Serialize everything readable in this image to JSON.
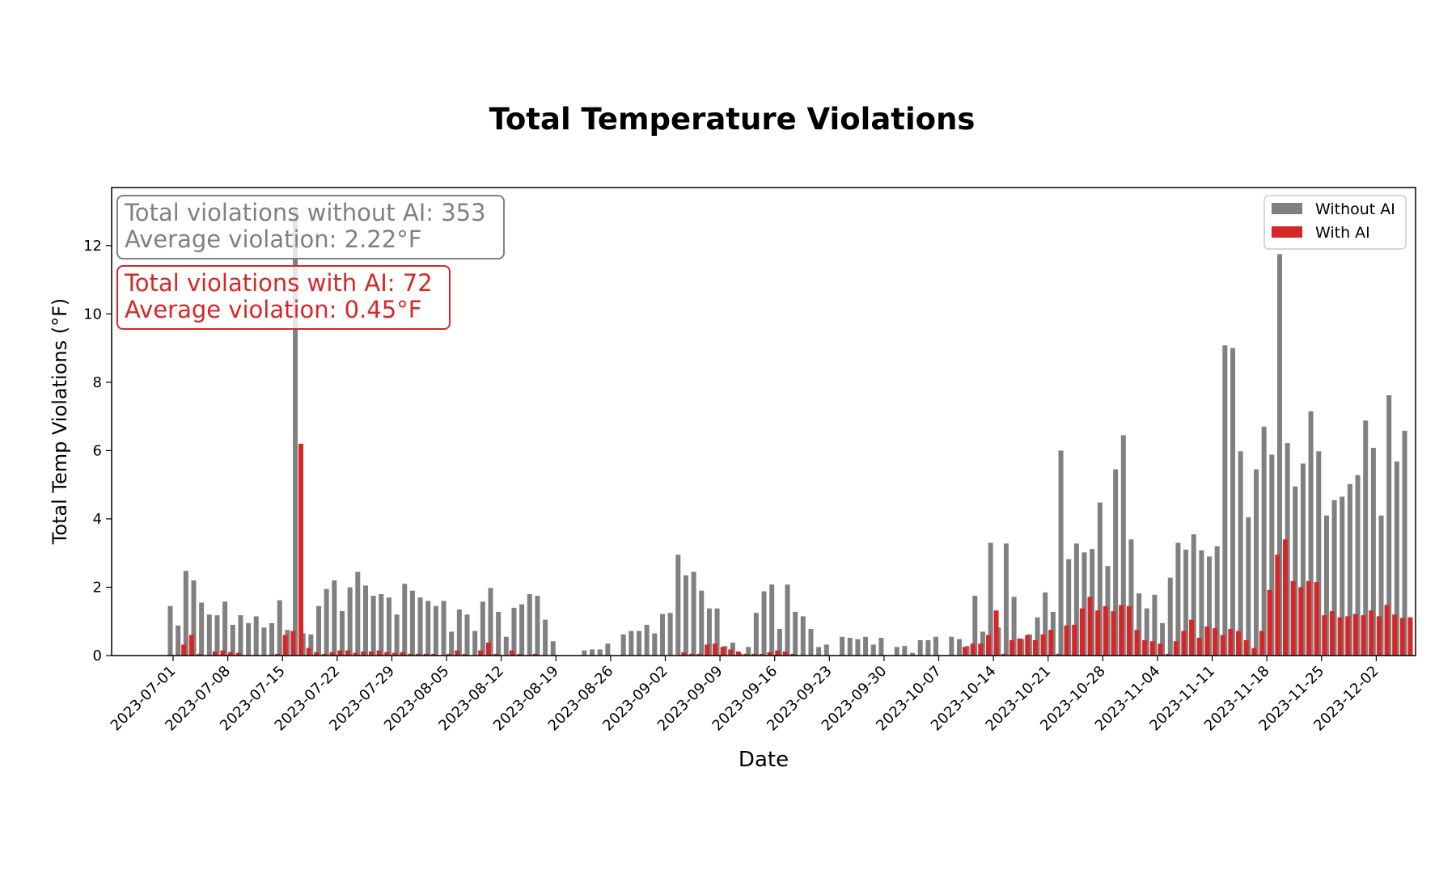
{
  "chart_data": {
    "type": "bar",
    "title": "Total Temperature Violations",
    "xlabel": "Date",
    "ylabel": "Total Temp Violations (°F)",
    "ylim": [
      0,
      13.7
    ],
    "yticks": [
      0,
      2,
      4,
      6,
      8,
      10,
      12
    ],
    "x_start": "2023-07-01",
    "x_ticks": [
      "2023-07-01",
      "2023-07-08",
      "2023-07-15",
      "2023-07-22",
      "2023-07-29",
      "2023-08-05",
      "2023-08-12",
      "2023-08-19",
      "2023-08-26",
      "2023-09-02",
      "2023-09-09",
      "2023-09-16",
      "2023-09-23",
      "2023-09-30",
      "2023-10-07",
      "2023-10-14",
      "2023-10-21",
      "2023-10-28",
      "2023-11-04",
      "2023-11-11",
      "2023-11-18",
      "2023-11-25",
      "2023-12-02"
    ],
    "grid": false,
    "legend_position": "top-right",
    "series": [
      {
        "name": "Without AI",
        "color": "#808080",
        "values": [
          1.45,
          0.88,
          2.48,
          2.2,
          1.55,
          1.2,
          1.18,
          1.58,
          0.9,
          1.18,
          0.95,
          1.15,
          0.82,
          0.95,
          1.62,
          0.75,
          13.1,
          0.65,
          0.62,
          1.45,
          1.95,
          2.2,
          1.3,
          2.0,
          2.45,
          2.05,
          1.75,
          1.8,
          1.7,
          1.2,
          2.1,
          1.9,
          1.7,
          1.6,
          1.45,
          1.6,
          0.7,
          1.35,
          1.2,
          0.72,
          1.58,
          1.98,
          1.28,
          0.55,
          1.4,
          1.5,
          1.8,
          1.75,
          1.05,
          0.42,
          0,
          0,
          0,
          0.15,
          0.18,
          0.18,
          0.35,
          0,
          0.62,
          0.72,
          0.72,
          0.9,
          0.65,
          1.22,
          1.25,
          2.95,
          2.35,
          2.45,
          1.9,
          1.38,
          1.38,
          0.28,
          0.38,
          0.05,
          0.25,
          1.25,
          1.88,
          2.08,
          0.78,
          2.08,
          1.28,
          1.15,
          0.78,
          0.25,
          0.32,
          0,
          0.55,
          0.52,
          0.48,
          0.55,
          0.32,
          0.52,
          0,
          0.25,
          0.28,
          0.08,
          0.45,
          0.45,
          0.55,
          0,
          0.55,
          0.48,
          0.28,
          1.75,
          0.7,
          3.3,
          0.82,
          3.28,
          1.72,
          0.48,
          0.62,
          1.12,
          1.85,
          1.28,
          6.0,
          2.82,
          3.28,
          3.02,
          3.12,
          4.48,
          2.62,
          5.45,
          6.45,
          3.4,
          1.82,
          1.38,
          1.78,
          0.95,
          2.28,
          3.3,
          3.1,
          3.55,
          3.08,
          2.9,
          3.2,
          9.08,
          9.0,
          5.98,
          4.05,
          5.45,
          6.7,
          5.88,
          11.75,
          6.22,
          4.95,
          5.62,
          7.15,
          5.98,
          4.1,
          4.55,
          4.65,
          5.02,
          5.28,
          6.88,
          6.08,
          4.1,
          7.62,
          5.68,
          6.58
        ]
      },
      {
        "name": "With AI",
        "color": "#d62728",
        "values": [
          0,
          0.32,
          0.6,
          0.05,
          0,
          0.12,
          0.15,
          0.1,
          0.08,
          0,
          0,
          0,
          0,
          0.05,
          0.6,
          0.72,
          6.2,
          0.22,
          0.1,
          0.05,
          0.1,
          0.15,
          0.15,
          0.08,
          0.12,
          0.12,
          0.15,
          0.1,
          0.08,
          0.1,
          0.05,
          0.05,
          0.05,
          0.05,
          0,
          0.05,
          0.15,
          0.05,
          0,
          0.15,
          0.38,
          0.05,
          0,
          0.15,
          0.05,
          0,
          0.05,
          0,
          0,
          0,
          0,
          0,
          0,
          0,
          0,
          0,
          0,
          0,
          0,
          0,
          0,
          0,
          0,
          0,
          0,
          0.1,
          0.05,
          0.05,
          0.32,
          0.35,
          0.25,
          0.18,
          0.12,
          0.05,
          0.05,
          0.05,
          0.1,
          0.15,
          0.12,
          0.05,
          0,
          0,
          0,
          0,
          0,
          0,
          0,
          0,
          0,
          0,
          0,
          0,
          0,
          0,
          0,
          0,
          0,
          0,
          0,
          0,
          0,
          0.25,
          0.35,
          0.35,
          0.6,
          1.32,
          0.05,
          0.45,
          0.5,
          0.6,
          0.45,
          0.62,
          0.75,
          0.05,
          0.88,
          0.9,
          1.38,
          1.72,
          1.32,
          1.45,
          1.3,
          1.48,
          1.45,
          0.75,
          0.45,
          0.42,
          0.35,
          0.05,
          0.42,
          0.72,
          1.05,
          0.52,
          0.85,
          0.8,
          0.6,
          0.78,
          0.72,
          0.45,
          0.22,
          0.72,
          1.92,
          2.95,
          3.4,
          2.18,
          2.0,
          2.18,
          2.15,
          1.18,
          1.3,
          1.12,
          1.15,
          1.22,
          1.18,
          1.32,
          1.15,
          1.48,
          1.2,
          1.1,
          1.12
        ]
      }
    ],
    "annotations": [
      {
        "lines": [
          "Total violations without AI: 353",
          "Average violation: 2.22°F"
        ],
        "color": "#808080",
        "position": "top-left"
      },
      {
        "lines": [
          "Total violations with AI: 72",
          "Average violation: 0.45°F"
        ],
        "color": "#d62728",
        "position": "top-left-below"
      }
    ]
  }
}
